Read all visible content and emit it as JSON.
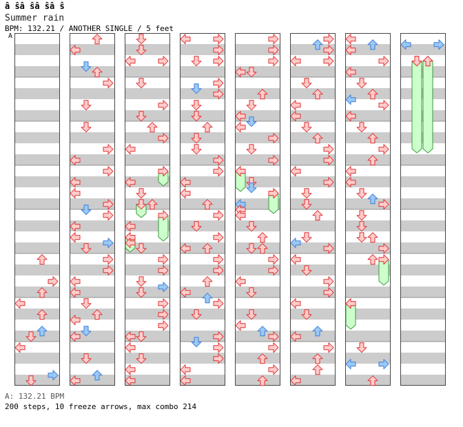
{
  "header": {
    "title": "â ŝâ ŝâ ŝâ ŝ",
    "song": "Summer rain",
    "info": "BPM: 132.21 / ANOTHER SINGLE / 5 feet",
    "bpm_marker": "A"
  },
  "footer": {
    "bpm_line": "A: 132.21 BPM",
    "stats": "200 steps, 10 freeze arrows, max combo 214"
  },
  "colors": {
    "stripe": "#cccccc",
    "red_fill": "#ffcccc",
    "red_stroke": "#e03030",
    "blue_fill": "#9cc8f4",
    "blue_stroke": "#3a7ed8",
    "freeze_fill": "#ccffcc",
    "freeze_stroke": "#3a9a3a"
  },
  "chart": {
    "columns": 8,
    "lanes": [
      "left",
      "down",
      "up",
      "right"
    ],
    "notes": [
      [
        0,
        424.7,
        "up",
        "r"
      ],
      [
        0,
        408.7,
        "right",
        "r"
      ],
      [
        0,
        376.7,
        "up",
        "r"
      ],
      [
        0,
        440.7,
        "left",
        "r"
      ],
      [
        0,
        456.7,
        "up",
        "r"
      ],
      [
        0,
        480.7,
        "up",
        "b"
      ],
      [
        0,
        488.7,
        "down",
        "r"
      ],
      [
        0,
        504.7,
        "left",
        "r"
      ],
      [
        0,
        544.7,
        "right",
        "b"
      ],
      [
        0,
        552.7,
        "down",
        "r"
      ],
      [
        1,
        56.7,
        "up",
        "r"
      ],
      [
        1,
        72.7,
        "left",
        "r"
      ],
      [
        1,
        96.7,
        "down",
        "b"
      ],
      [
        1,
        104.7,
        "up",
        "r"
      ],
      [
        1,
        120.7,
        "right",
        "r"
      ],
      [
        1,
        152.7,
        "down",
        "r"
      ],
      [
        1,
        184.7,
        "down",
        "r"
      ],
      [
        1,
        216.7,
        "right",
        "r"
      ],
      [
        1,
        232.7,
        "left",
        "r"
      ],
      [
        1,
        248.7,
        "right",
        "r"
      ],
      [
        1,
        264.7,
        "left",
        "r"
      ],
      [
        1,
        280.7,
        "left",
        "r"
      ],
      [
        1,
        296.7,
        "right",
        "r"
      ],
      [
        1,
        304.7,
        "down",
        "b"
      ],
      [
        1,
        312.7,
        "right",
        "r"
      ],
      [
        1,
        328.7,
        "left",
        "r"
      ],
      [
        1,
        344.7,
        "left",
        "r"
      ],
      [
        1,
        352.7,
        "right",
        "b"
      ],
      [
        1,
        360.7,
        "down",
        "r"
      ],
      [
        1,
        376.7,
        "right",
        "r"
      ],
      [
        1,
        392.7,
        "right",
        "r"
      ],
      [
        1,
        408.7,
        "left",
        "r"
      ],
      [
        1,
        424.7,
        "left",
        "r"
      ],
      [
        1,
        440.7,
        "down",
        "r"
      ],
      [
        1,
        456.7,
        "up",
        "r"
      ],
      [
        1,
        464.7,
        "left",
        "r"
      ],
      [
        1,
        480.7,
        "down",
        "b"
      ],
      [
        1,
        488.7,
        "left",
        "r"
      ],
      [
        1,
        520.7,
        "down",
        "r"
      ],
      [
        1,
        544.7,
        "up",
        "b"
      ],
      [
        1,
        552.7,
        "left",
        "r"
      ],
      [
        2,
        56.7,
        "down",
        "r"
      ],
      [
        2,
        72.7,
        "down",
        "r"
      ],
      [
        2,
        88.7,
        "left",
        "r"
      ],
      [
        2,
        88.7,
        "right",
        "r"
      ],
      [
        2,
        120.7,
        "down",
        "r"
      ],
      [
        2,
        152.7,
        "right",
        "r"
      ],
      [
        2,
        168.7,
        "down",
        "r"
      ],
      [
        2,
        184.7,
        "up",
        "r"
      ],
      [
        2,
        200.7,
        "right",
        "r"
      ],
      [
        2,
        216.7,
        "left",
        "r"
      ],
      [
        2,
        248.7,
        "right",
        "r"
      ],
      [
        2,
        264.7,
        "left",
        "r"
      ],
      [
        2,
        280.7,
        "down",
        "r"
      ],
      [
        2,
        296.7,
        "up",
        "r"
      ],
      [
        2,
        328.7,
        "left",
        "r"
      ],
      [
        2,
        344.7,
        "left",
        "r"
      ],
      [
        2,
        352.7,
        "left",
        "r"
      ],
      [
        2,
        360.7,
        "down",
        "r"
      ],
      [
        2,
        376.7,
        "right",
        "r"
      ],
      [
        2,
        392.7,
        "right",
        "r"
      ],
      [
        2,
        408.7,
        "down",
        "r"
      ],
      [
        2,
        416.7,
        "right",
        "b"
      ],
      [
        2,
        424.7,
        "down",
        "r"
      ],
      [
        2,
        440.7,
        "right",
        "r"
      ],
      [
        2,
        456.7,
        "right",
        "r"
      ],
      [
        2,
        472.7,
        "right",
        "r"
      ],
      [
        2,
        488.7,
        "left",
        "r"
      ],
      [
        2,
        488.7,
        "down",
        "r"
      ],
      [
        2,
        504.7,
        "left",
        "r"
      ],
      [
        2,
        520.7,
        "down",
        "r"
      ],
      [
        2,
        536.7,
        "left",
        "r"
      ],
      [
        2,
        552.7,
        "left",
        "r"
      ],
      [
        3,
        56.7,
        "left",
        "r"
      ],
      [
        3,
        56.7,
        "right",
        "r"
      ],
      [
        3,
        72.7,
        "right",
        "r"
      ],
      [
        3,
        88.7,
        "down",
        "r"
      ],
      [
        3,
        88.7,
        "right",
        "r"
      ],
      [
        3,
        120.7,
        "right",
        "r"
      ],
      [
        3,
        128.7,
        "down",
        "b"
      ],
      [
        3,
        136.7,
        "right",
        "r"
      ],
      [
        3,
        152.7,
        "down",
        "r"
      ],
      [
        3,
        168.7,
        "down",
        "r"
      ],
      [
        3,
        184.7,
        "up",
        "r"
      ],
      [
        3,
        200.7,
        "down",
        "r"
      ],
      [
        3,
        216.7,
        "down",
        "r"
      ],
      [
        3,
        232.7,
        "right",
        "r"
      ],
      [
        3,
        248.7,
        "right",
        "r"
      ],
      [
        3,
        264.7,
        "left",
        "r"
      ],
      [
        3,
        280.7,
        "left",
        "r"
      ],
      [
        3,
        296.7,
        "up",
        "r"
      ],
      [
        3,
        312.7,
        "right",
        "r"
      ],
      [
        3,
        328.7,
        "down",
        "r"
      ],
      [
        3,
        344.7,
        "right",
        "r"
      ],
      [
        3,
        360.7,
        "left",
        "r"
      ],
      [
        3,
        360.7,
        "up",
        "r"
      ],
      [
        3,
        376.7,
        "right",
        "r"
      ],
      [
        3,
        392.7,
        "right",
        "r"
      ],
      [
        3,
        408.7,
        "up",
        "r"
      ],
      [
        3,
        424.7,
        "left",
        "r"
      ],
      [
        3,
        432.7,
        "up",
        "b"
      ],
      [
        3,
        440.7,
        "right",
        "r"
      ],
      [
        3,
        456.7,
        "down",
        "r"
      ],
      [
        3,
        488.7,
        "right",
        "r"
      ],
      [
        3,
        496.7,
        "down",
        "b"
      ],
      [
        3,
        504.7,
        "right",
        "r"
      ],
      [
        3,
        520.7,
        "right",
        "r"
      ],
      [
        3,
        536.7,
        "left",
        "r"
      ],
      [
        3,
        552.7,
        "left",
        "r"
      ],
      [
        4,
        56.7,
        "right",
        "r"
      ],
      [
        4,
        72.7,
        "right",
        "r"
      ],
      [
        4,
        88.7,
        "right",
        "r"
      ],
      [
        4,
        104.7,
        "left",
        "r"
      ],
      [
        4,
        104.7,
        "down",
        "r"
      ],
      [
        4,
        136.7,
        "up",
        "r"
      ],
      [
        4,
        152.7,
        "down",
        "r"
      ],
      [
        4,
        168.7,
        "left",
        "r"
      ],
      [
        4,
        176.7,
        "down",
        "b"
      ],
      [
        4,
        184.7,
        "left",
        "r"
      ],
      [
        4,
        200.7,
        "right",
        "r"
      ],
      [
        4,
        216.7,
        "down",
        "r"
      ],
      [
        4,
        232.7,
        "right",
        "r"
      ],
      [
        4,
        248.7,
        "left",
        "r"
      ],
      [
        4,
        264.7,
        "down",
        "r"
      ],
      [
        4,
        272.7,
        "down",
        "b"
      ],
      [
        4,
        280.7,
        "right",
        "r"
      ],
      [
        4,
        296.7,
        "left",
        "b"
      ],
      [
        4,
        304.7,
        "left",
        "r"
      ],
      [
        4,
        312.7,
        "left",
        "r"
      ],
      [
        4,
        328.7,
        "down",
        "r"
      ],
      [
        4,
        344.7,
        "up",
        "r"
      ],
      [
        4,
        360.7,
        "down",
        "r"
      ],
      [
        4,
        360.7,
        "up",
        "r"
      ],
      [
        4,
        376.7,
        "right",
        "r"
      ],
      [
        4,
        392.7,
        "right",
        "r"
      ],
      [
        4,
        408.7,
        "left",
        "r"
      ],
      [
        4,
        424.7,
        "down",
        "r"
      ],
      [
        4,
        456.7,
        "down",
        "r"
      ],
      [
        4,
        472.7,
        "left",
        "r"
      ],
      [
        4,
        480.7,
        "up",
        "b"
      ],
      [
        4,
        488.7,
        "right",
        "r"
      ],
      [
        4,
        504.7,
        "right",
        "r"
      ],
      [
        4,
        520.7,
        "up",
        "r"
      ],
      [
        4,
        536.7,
        "right",
        "r"
      ],
      [
        4,
        552.7,
        "up",
        "r"
      ],
      [
        5,
        56.7,
        "right",
        "r"
      ],
      [
        5,
        64.7,
        "up",
        "b"
      ],
      [
        5,
        72.7,
        "right",
        "r"
      ],
      [
        5,
        88.7,
        "left",
        "r"
      ],
      [
        5,
        88.7,
        "right",
        "r"
      ],
      [
        5,
        120.7,
        "down",
        "r"
      ],
      [
        5,
        136.7,
        "up",
        "r"
      ],
      [
        5,
        152.7,
        "left",
        "r"
      ],
      [
        5,
        168.7,
        "left",
        "r"
      ],
      [
        5,
        184.7,
        "down",
        "r"
      ],
      [
        5,
        200.7,
        "up",
        "r"
      ],
      [
        5,
        216.7,
        "right",
        "r"
      ],
      [
        5,
        232.7,
        "right",
        "r"
      ],
      [
        5,
        248.7,
        "left",
        "r"
      ],
      [
        5,
        264.7,
        "right",
        "r"
      ],
      [
        5,
        280.7,
        "down",
        "r"
      ],
      [
        5,
        296.7,
        "down",
        "r"
      ],
      [
        5,
        312.7,
        "up",
        "r"
      ],
      [
        5,
        344.7,
        "down",
        "r"
      ],
      [
        5,
        352.7,
        "left",
        "b"
      ],
      [
        5,
        360.7,
        "right",
        "r"
      ],
      [
        5,
        376.7,
        "left",
        "r"
      ],
      [
        5,
        392.7,
        "down",
        "r"
      ],
      [
        5,
        408.7,
        "right",
        "r"
      ],
      [
        5,
        424.7,
        "right",
        "r"
      ],
      [
        5,
        440.7,
        "left",
        "r"
      ],
      [
        5,
        456.7,
        "down",
        "r"
      ],
      [
        5,
        480.7,
        "up",
        "b"
      ],
      [
        5,
        488.7,
        "left",
        "r"
      ],
      [
        5,
        504.7,
        "right",
        "r"
      ],
      [
        5,
        520.7,
        "up",
        "r"
      ],
      [
        5,
        536.7,
        "up",
        "r"
      ],
      [
        5,
        552.7,
        "left",
        "r"
      ],
      [
        6,
        56.7,
        "left",
        "r"
      ],
      [
        6,
        64.7,
        "up",
        "b"
      ],
      [
        6,
        72.7,
        "left",
        "r"
      ],
      [
        6,
        88.7,
        "right",
        "r"
      ],
      [
        6,
        104.7,
        "left",
        "r"
      ],
      [
        6,
        120.7,
        "down",
        "r"
      ],
      [
        6,
        136.7,
        "up",
        "r"
      ],
      [
        6,
        144.7,
        "left",
        "b"
      ],
      [
        6,
        152.7,
        "right",
        "r"
      ],
      [
        6,
        168.7,
        "left",
        "r"
      ],
      [
        6,
        184.7,
        "down",
        "r"
      ],
      [
        6,
        200.7,
        "up",
        "r"
      ],
      [
        6,
        216.7,
        "right",
        "r"
      ],
      [
        6,
        232.7,
        "up",
        "r"
      ],
      [
        6,
        248.7,
        "left",
        "r"
      ],
      [
        6,
        264.7,
        "left",
        "r"
      ],
      [
        6,
        280.7,
        "down",
        "r"
      ],
      [
        6,
        288.7,
        "up",
        "b"
      ],
      [
        6,
        296.7,
        "right",
        "r"
      ],
      [
        6,
        312.7,
        "down",
        "r"
      ],
      [
        6,
        328.7,
        "down",
        "r"
      ],
      [
        6,
        344.7,
        "down",
        "r"
      ],
      [
        6,
        344.7,
        "up",
        "r"
      ],
      [
        6,
        360.7,
        "right",
        "r"
      ],
      [
        6,
        376.7,
        "up",
        "r"
      ],
      [
        6,
        440.7,
        "left",
        "r"
      ],
      [
        6,
        504.7,
        "down",
        "r"
      ],
      [
        6,
        528.7,
        "left",
        "b"
      ],
      [
        6,
        528.7,
        "right",
        "b"
      ],
      [
        6,
        552.7,
        "up",
        "r"
      ],
      [
        7,
        64.7,
        "left",
        "b"
      ],
      [
        7,
        64.7,
        "right",
        "b"
      ],
      [
        7,
        88.7,
        "down",
        "r"
      ],
      [
        7,
        88.7,
        "up",
        "r"
      ]
    ],
    "freezes": [
      [
        2,
        248.7,
        270,
        "right"
      ],
      [
        2,
        296.7,
        316,
        "down"
      ],
      [
        2,
        312.7,
        350,
        "right"
      ],
      [
        2,
        344.7,
        366,
        "left"
      ],
      [
        4,
        248.7,
        278,
        "left"
      ],
      [
        4,
        280.7,
        310,
        "right"
      ],
      [
        6,
        376.7,
        414,
        "right"
      ],
      [
        6,
        440.7,
        478,
        "left"
      ],
      [
        7,
        88.7,
        222,
        "down"
      ],
      [
        7,
        88.7,
        222,
        "up"
      ]
    ]
  }
}
